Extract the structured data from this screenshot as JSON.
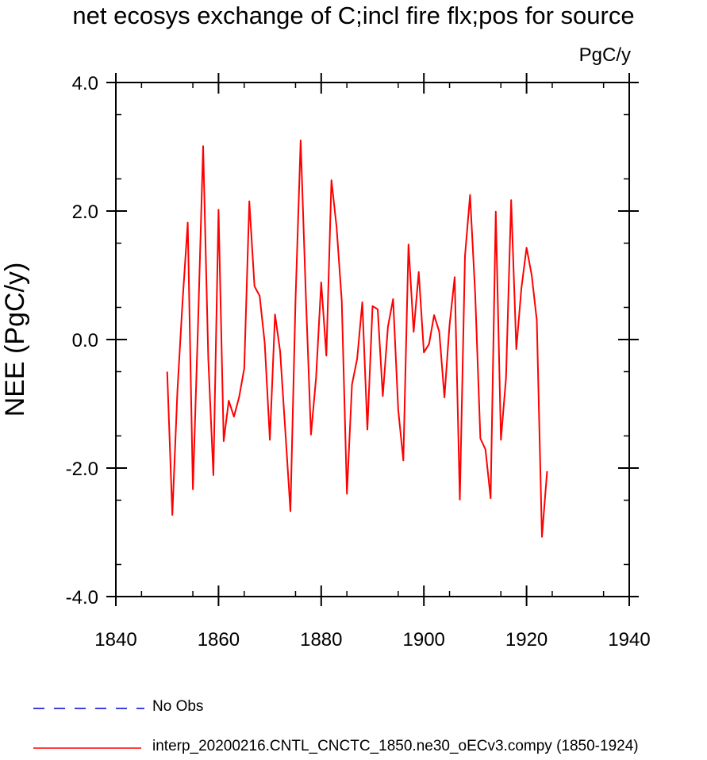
{
  "chart_data": {
    "type": "line",
    "title": "net ecosys exchange of C;incl fire flx;pos for source",
    "units": "PgC/y",
    "ylabel": "NEE  (PgC/y)",
    "xlim": [
      1840,
      1940
    ],
    "ylim": [
      -4.0,
      4.0
    ],
    "xticks": [
      1840,
      1860,
      1880,
      1900,
      1920,
      1940
    ],
    "xtick_labels": [
      "1840",
      "1860",
      "1880",
      "1900",
      "1920",
      "1940"
    ],
    "yticks": [
      4.0,
      2.0,
      0.0,
      -2.0,
      -4.0
    ],
    "ytick_labels": [
      "4.0",
      "2.0",
      "0.0",
      "-2.0",
      "-4.0"
    ],
    "grid": false,
    "legend_placement": "bottom-left",
    "series": [
      {
        "name": "interp_20200216.CNTL_CNCTC_1850.ne30_oECv3.compy (1850-1924)",
        "color": "#ff0000",
        "dash": "solid",
        "x": [
          1850,
          1851,
          1852,
          1853,
          1854,
          1855,
          1856,
          1857,
          1858,
          1859,
          1860,
          1861,
          1862,
          1863,
          1864,
          1865,
          1866,
          1867,
          1868,
          1869,
          1870,
          1871,
          1872,
          1873,
          1874,
          1875,
          1876,
          1877,
          1878,
          1879,
          1880,
          1881,
          1882,
          1883,
          1884,
          1885,
          1886,
          1887,
          1888,
          1889,
          1890,
          1891,
          1892,
          1893,
          1894,
          1895,
          1896,
          1897,
          1898,
          1899,
          1900,
          1901,
          1902,
          1903,
          1904,
          1905,
          1906,
          1907,
          1908,
          1909,
          1910,
          1911,
          1912,
          1913,
          1914,
          1915,
          1916,
          1917,
          1918,
          1919,
          1920,
          1921,
          1922,
          1923,
          1924
        ],
        "y": [
          -0.5,
          -2.73,
          -0.8,
          0.6,
          1.82,
          -2.33,
          0.2,
          3.01,
          -0.3,
          -2.11,
          2.02,
          -1.58,
          -0.95,
          -1.2,
          -0.9,
          -0.45,
          2.15,
          0.83,
          0.68,
          -0.05,
          -1.56,
          0.39,
          -0.18,
          -1.41,
          -2.67,
          0.6,
          3.1,
          0.7,
          -1.48,
          -0.6,
          0.89,
          -0.25,
          2.48,
          1.75,
          0.6,
          -2.4,
          -0.7,
          -0.3,
          0.58,
          -1.4,
          0.52,
          0.47,
          -0.88,
          0.2,
          0.63,
          -1.1,
          -1.88,
          1.48,
          0.12,
          1.05,
          -0.2,
          -0.07,
          0.38,
          0.12,
          -0.9,
          0.22,
          0.97,
          -2.49,
          1.3,
          2.25,
          0.7,
          -1.54,
          -1.71,
          -2.47,
          1.99,
          -1.56,
          -0.6,
          2.17,
          -0.15,
          0.8,
          1.43,
          1.0,
          0.3,
          -3.07,
          -2.05
        ]
      }
    ],
    "legend": [
      {
        "label": "No Obs",
        "color": "#0000cc",
        "dash": "dashed"
      },
      {
        "label": "interp_20200216.CNTL_CNCTC_1850.ne30_oECv3.compy (1850-1924)",
        "color": "#ff0000",
        "dash": "solid"
      }
    ]
  }
}
